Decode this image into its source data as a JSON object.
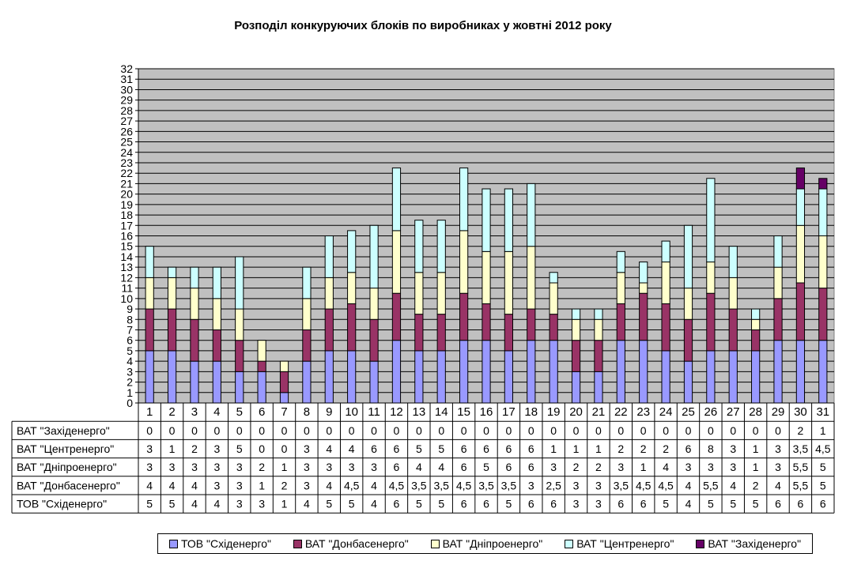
{
  "chart_data": {
    "type": "bar",
    "stacked": true,
    "title": "Розподіл конкуруючих блоків по виробниках у жовтні 2012 року",
    "categories": [
      "1",
      "2",
      "3",
      "4",
      "5",
      "6",
      "7",
      "8",
      "9",
      "10",
      "11",
      "12",
      "13",
      "14",
      "15",
      "16",
      "17",
      "18",
      "19",
      "20",
      "21",
      "22",
      "23",
      "24",
      "25",
      "26",
      "27",
      "28",
      "29",
      "30",
      "31"
    ],
    "ylim": [
      0,
      32
    ],
    "yticks": [
      "0",
      "1",
      "2",
      "3",
      "4",
      "5",
      "6",
      "7",
      "8",
      "9",
      "10",
      "11",
      "12",
      "13",
      "14",
      "15",
      "16",
      "17",
      "18",
      "19",
      "20",
      "21",
      "22",
      "23",
      "24",
      "25",
      "26",
      "27",
      "28",
      "29",
      "30",
      "31",
      "32"
    ],
    "grid": true,
    "legend_position": "bottom",
    "plot_background": "#c0c0c0",
    "series": [
      {
        "name": "ТОВ \"Східенерго\"",
        "color": "#9999ff",
        "values": [
          5,
          5,
          4,
          4,
          3,
          3,
          1,
          4,
          5,
          5,
          4,
          6,
          5,
          5,
          6,
          6,
          5,
          6,
          6,
          3,
          3,
          6,
          6,
          5,
          4,
          5,
          5,
          5,
          6,
          6,
          6
        ],
        "labels": [
          "5",
          "5",
          "4",
          "4",
          "3",
          "3",
          "1",
          "4",
          "5",
          "5",
          "4",
          "6",
          "5",
          "5",
          "6",
          "6",
          "5",
          "6",
          "6",
          "3",
          "3",
          "6",
          "6",
          "5",
          "4",
          "5",
          "5",
          "5",
          "6",
          "6",
          "6"
        ]
      },
      {
        "name": "ВАТ \"Донбасенерго\"",
        "color": "#993366",
        "values": [
          4,
          4,
          4,
          3,
          3,
          1,
          2,
          3,
          4,
          4.5,
          4,
          4.5,
          3.5,
          3.5,
          4.5,
          3.5,
          3.5,
          3,
          2.5,
          3,
          3,
          3.5,
          4.5,
          4.5,
          4,
          5.5,
          4,
          2,
          4,
          5.5,
          5
        ],
        "labels": [
          "4",
          "4",
          "4",
          "3",
          "3",
          "1",
          "2",
          "3",
          "4",
          "4,5",
          "4",
          "4,5",
          "3,5",
          "3,5",
          "4,5",
          "3,5",
          "3,5",
          "3",
          "2,5",
          "3",
          "3",
          "3,5",
          "4,5",
          "4,5",
          "4",
          "5,5",
          "4",
          "2",
          "4",
          "5,5",
          "5"
        ]
      },
      {
        "name": "ВАТ \"Дніпроенерго\"",
        "color": "#ffffcc",
        "values": [
          3,
          3,
          3,
          3,
          3,
          2,
          1,
          3,
          3,
          3,
          3,
          6,
          4,
          4,
          6,
          5,
          6,
          6,
          3,
          2,
          2,
          3,
          1,
          4,
          3,
          3,
          3,
          1,
          3,
          5.5,
          5
        ],
        "labels": [
          "3",
          "3",
          "3",
          "3",
          "3",
          "2",
          "1",
          "3",
          "3",
          "3",
          "3",
          "6",
          "4",
          "4",
          "6",
          "5",
          "6",
          "6",
          "3",
          "2",
          "2",
          "3",
          "1",
          "4",
          "3",
          "3",
          "3",
          "1",
          "3",
          "5,5",
          "5"
        ]
      },
      {
        "name": "ВАТ \"Центренерго\"",
        "color": "#ccffff",
        "values": [
          3,
          1,
          2,
          3,
          5,
          0,
          0,
          3,
          4,
          4,
          6,
          6,
          5,
          5,
          6,
          6,
          6,
          6,
          1,
          1,
          1,
          2,
          2,
          2,
          6,
          8,
          3,
          1,
          3,
          3.5,
          4.5
        ],
        "labels": [
          "3",
          "1",
          "2",
          "3",
          "5",
          "0",
          "0",
          "3",
          "4",
          "4",
          "6",
          "6",
          "5",
          "5",
          "6",
          "6",
          "6",
          "6",
          "1",
          "1",
          "1",
          "2",
          "2",
          "2",
          "6",
          "8",
          "3",
          "1",
          "3",
          "3,5",
          "4,5"
        ]
      },
      {
        "name": "ВАТ \"Західенерго\"",
        "color": "#660066",
        "values": [
          0,
          0,
          0,
          0,
          0,
          0,
          0,
          0,
          0,
          0,
          0,
          0,
          0,
          0,
          0,
          0,
          0,
          0,
          0,
          0,
          0,
          0,
          0,
          0,
          0,
          0,
          0,
          0,
          0,
          2,
          1
        ],
        "labels": [
          "0",
          "0",
          "0",
          "0",
          "0",
          "0",
          "0",
          "0",
          "0",
          "0",
          "0",
          "0",
          "0",
          "0",
          "0",
          "0",
          "0",
          "0",
          "0",
          "0",
          "0",
          "0",
          "0",
          "0",
          "0",
          "0",
          "0",
          "0",
          "0",
          "2",
          "1"
        ]
      }
    ],
    "table_row_order": [
      4,
      3,
      2,
      1,
      0
    ]
  }
}
